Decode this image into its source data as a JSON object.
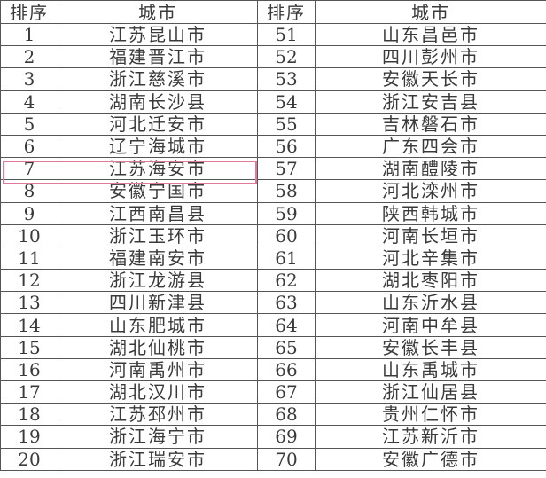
{
  "headers": [
    "排序",
    "城市",
    "排序",
    "城市"
  ],
  "highlight_color": "#e07a9b",
  "highlighted_rank": "7",
  "rows": [
    {
      "rank_a": "1",
      "city_a": "江苏昆山市",
      "rank_b": "51",
      "city_b": "山东昌邑市"
    },
    {
      "rank_a": "2",
      "city_a": "福建晋江市",
      "rank_b": "52",
      "city_b": "四川彭州市"
    },
    {
      "rank_a": "3",
      "city_a": "浙江慈溪市",
      "rank_b": "53",
      "city_b": "安徽天长市"
    },
    {
      "rank_a": "4",
      "city_a": "湖南长沙县",
      "rank_b": "54",
      "city_b": "浙江安吉县"
    },
    {
      "rank_a": "5",
      "city_a": "河北迁安市",
      "rank_b": "55",
      "city_b": "吉林磐石市"
    },
    {
      "rank_a": "6",
      "city_a": "辽宁海城市",
      "rank_b": "56",
      "city_b": "广东四会市"
    },
    {
      "rank_a": "7",
      "city_a": "江苏海安市",
      "rank_b": "57",
      "city_b": "湖南醴陵市"
    },
    {
      "rank_a": "8",
      "city_a": "安徽宁国市",
      "rank_b": "58",
      "city_b": "河北滦州市"
    },
    {
      "rank_a": "9",
      "city_a": "江西南昌县",
      "rank_b": "59",
      "city_b": "陕西韩城市"
    },
    {
      "rank_a": "10",
      "city_a": "浙江玉环市",
      "rank_b": "60",
      "city_b": "河南长垣市"
    },
    {
      "rank_a": "11",
      "city_a": "福建南安市",
      "rank_b": "61",
      "city_b": "河北辛集市"
    },
    {
      "rank_a": "12",
      "city_a": "浙江龙游县",
      "rank_b": "62",
      "city_b": "湖北枣阳市"
    },
    {
      "rank_a": "13",
      "city_a": "四川新津县",
      "rank_b": "63",
      "city_b": "山东沂水县"
    },
    {
      "rank_a": "14",
      "city_a": "山东肥城市",
      "rank_b": "64",
      "city_b": "河南中牟县"
    },
    {
      "rank_a": "15",
      "city_a": "湖北仙桃市",
      "rank_b": "65",
      "city_b": "安徽长丰县"
    },
    {
      "rank_a": "16",
      "city_a": "河南禹州市",
      "rank_b": "66",
      "city_b": "山东禹城市"
    },
    {
      "rank_a": "17",
      "city_a": "湖北汉川市",
      "rank_b": "67",
      "city_b": "浙江仙居县"
    },
    {
      "rank_a": "18",
      "city_a": "江苏邳州市",
      "rank_b": "68",
      "city_b": "贵州仁怀市"
    },
    {
      "rank_a": "19",
      "city_a": "浙江海宁市",
      "rank_b": "69",
      "city_b": "江苏新沂市"
    },
    {
      "rank_a": "20",
      "city_a": "浙江瑞安市",
      "rank_b": "70",
      "city_b": "安徽广德市"
    }
  ]
}
